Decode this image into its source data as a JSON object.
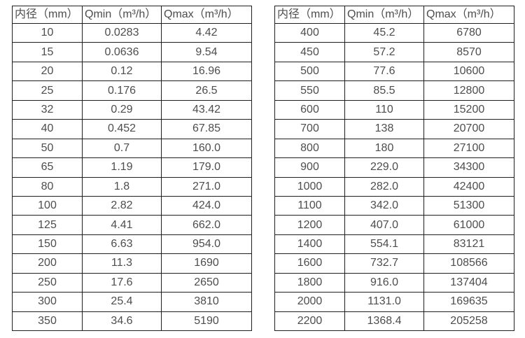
{
  "page": {
    "background_color": "#ffffff",
    "border_color": "#1f1f1f",
    "text_color": "#4d4d4d"
  },
  "tables": [
    {
      "name": "flow-table-small-diameters",
      "columns": [
        "内径（mm）",
        "Qmin（m³/h）",
        "Qmax（m³/h）"
      ],
      "rows": [
        [
          "10",
          "0.0283",
          "4.42"
        ],
        [
          "15",
          "0.0636",
          "9.54"
        ],
        [
          "20",
          "0.12",
          "16.96"
        ],
        [
          "25",
          "0.176",
          "26.5"
        ],
        [
          "32",
          "0.29",
          "43.42"
        ],
        [
          "40",
          "0.452",
          "67.85"
        ],
        [
          "50",
          "0.7",
          "160.0"
        ],
        [
          "65",
          "1.19",
          "179.0"
        ],
        [
          "80",
          "1.8",
          "271.0"
        ],
        [
          "100",
          "2.82",
          "424.0"
        ],
        [
          "125",
          "4.41",
          "662.0"
        ],
        [
          "150",
          "6.63",
          "954.0"
        ],
        [
          "200",
          "11.3",
          "1690"
        ],
        [
          "250",
          "17.6",
          "2650"
        ],
        [
          "300",
          "25.4",
          "3810"
        ],
        [
          "350",
          "34.6",
          "5190"
        ]
      ]
    },
    {
      "name": "flow-table-large-diameters",
      "columns": [
        "内径（mm）",
        "Qmin（m³/h）",
        "Qmax（m³/h）"
      ],
      "rows": [
        [
          "400",
          "45.2",
          "6780"
        ],
        [
          "450",
          "57.2",
          "8570"
        ],
        [
          "500",
          "77.6",
          "10600"
        ],
        [
          "550",
          "85.5",
          "12800"
        ],
        [
          "600",
          "110",
          "15200"
        ],
        [
          "700",
          "138",
          "20700"
        ],
        [
          "800",
          "180",
          "27100"
        ],
        [
          "900",
          "229.0",
          "34300"
        ],
        [
          "1000",
          "282.0",
          "42400"
        ],
        [
          "1100",
          "342.0",
          "51300"
        ],
        [
          "1200",
          "407.0",
          "61000"
        ],
        [
          "1400",
          "554.1",
          "83121"
        ],
        [
          "1600",
          "732.7",
          "108566"
        ],
        [
          "1800",
          "916.0",
          "137404"
        ],
        [
          "2000",
          "1131.0",
          "169635"
        ],
        [
          "2200",
          "1368.4",
          "205258"
        ]
      ]
    }
  ]
}
